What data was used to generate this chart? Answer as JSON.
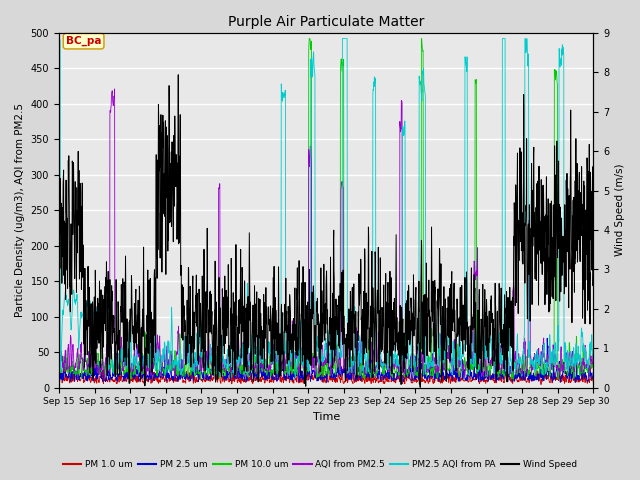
{
  "title": "Purple Air Particulate Matter",
  "xlabel": "Time",
  "ylabel_left": "Particle Density (ug/m3), AQI from PM2.5",
  "ylabel_right": "Wind Speed (m/s)",
  "ylim_left": [
    0,
    500
  ],
  "ylim_right": [
    0.0,
    9.0
  ],
  "annotation_text": "BC_pa",
  "annotation_color": "#cc0000",
  "annotation_box_facecolor": "#ffffcc",
  "annotation_box_edgecolor": "#cc9900",
  "colors": {
    "pm1": "#cc0000",
    "pm25": "#0000cc",
    "pm10": "#00cc00",
    "aqi_pm25": "#9900cc",
    "pm25_aqi_pa": "#00cccc",
    "wind": "#000000"
  },
  "legend_labels": [
    "PM 1.0 um",
    "PM 2.5 um",
    "PM 10.0 um",
    "AQI from PM2.5",
    "PM2.5 AQI from PA",
    "Wind Speed"
  ],
  "background_color": "#d8d8d8",
  "plot_bg_color": "#e8e8e8",
  "grid_color": "#ffffff",
  "yticks_left": [
    0,
    50,
    100,
    150,
    200,
    250,
    300,
    350,
    400,
    450,
    500
  ],
  "yticks_right": [
    0.0,
    1.0,
    2.0,
    3.0,
    4.0,
    5.0,
    6.0,
    7.0,
    8.0,
    9.0
  ],
  "wind_scale": 55.56,
  "figsize": [
    6.4,
    4.8
  ],
  "dpi": 100
}
